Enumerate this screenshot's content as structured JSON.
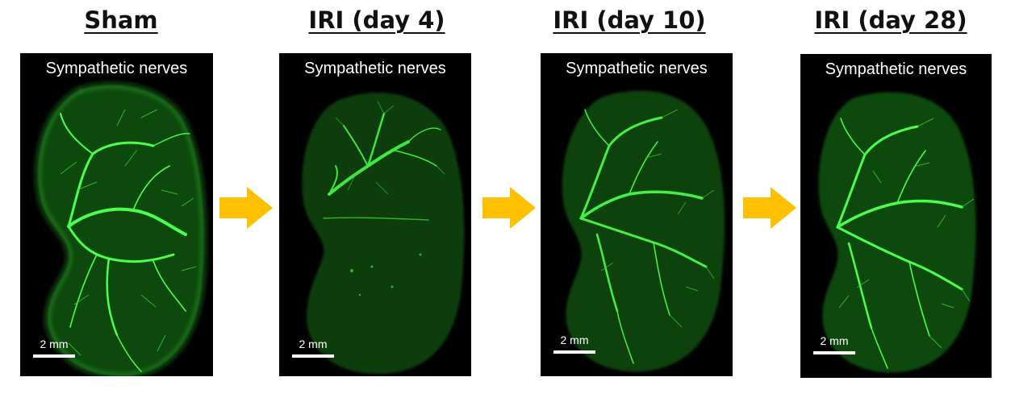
{
  "colors": {
    "background": "#ffffff",
    "panel_background": "#000000",
    "nerve_green": "#33ff33",
    "tissue_green": "#0c3c0c",
    "arrow": "#ffc000"
  },
  "panels": [
    {
      "heading": "Sham",
      "label": "Sympathetic nerves",
      "scale_label": "2 mm"
    },
    {
      "heading": "IRI (day 4)",
      "label": "Sympathetic nerves",
      "scale_label": "2 mm"
    },
    {
      "heading": "IRI (day 10)",
      "label": "Sympathetic nerves",
      "scale_label": "2 mm"
    },
    {
      "heading": "IRI (day 28)",
      "label": "Sympathetic nerves",
      "scale_label": "2 mm"
    }
  ],
  "arrows": [
    {
      "icon": "right-arrow-icon"
    },
    {
      "icon": "right-arrow-icon"
    },
    {
      "icon": "right-arrow-icon"
    }
  ]
}
